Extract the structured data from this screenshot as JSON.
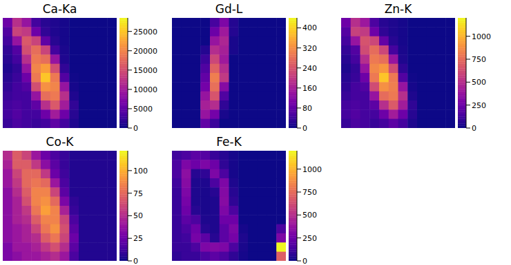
{
  "chart_data": [
    {
      "type": "heatmap",
      "title": "Ca-Ka",
      "tick_labels": false,
      "colorbar_range": [
        0,
        28500
      ],
      "colorbar_ticks": [
        0,
        5000,
        10000,
        15000,
        20000,
        25000
      ],
      "cells": [
        [
          6000,
          12000,
          9000,
          3000,
          1500,
          1000,
          500,
          0,
          0,
          0,
          0,
          0
        ],
        [
          4000,
          14000,
          13000,
          6000,
          2000,
          1000,
          500,
          0,
          0,
          0,
          0,
          0
        ],
        [
          3000,
          9000,
          16000,
          14000,
          5000,
          1500,
          500,
          0,
          0,
          0,
          0,
          0
        ],
        [
          2000,
          4000,
          15000,
          18000,
          14000,
          3000,
          800,
          0,
          0,
          0,
          0,
          0
        ],
        [
          1500,
          3000,
          12000,
          19000,
          18000,
          9000,
          1000,
          0,
          0,
          0,
          0,
          0
        ],
        [
          1000,
          2000,
          9000,
          20000,
          22000,
          15000,
          2000,
          0,
          0,
          0,
          0,
          0
        ],
        [
          1500,
          2500,
          6000,
          19000,
          25000,
          19000,
          4000,
          200,
          0,
          0,
          0,
          0
        ],
        [
          2000,
          3000,
          4000,
          15000,
          21000,
          20000,
          9000,
          500,
          0,
          0,
          0,
          0
        ],
        [
          2500,
          3000,
          3000,
          9000,
          18000,
          19000,
          12000,
          1000,
          0,
          0,
          0,
          0
        ],
        [
          3000,
          3500,
          3000,
          5000,
          12000,
          16000,
          10000,
          2000,
          0,
          0,
          0,
          0
        ],
        [
          3000,
          4000,
          3000,
          3000,
          6000,
          10000,
          6000,
          1500,
          0,
          0,
          0,
          0
        ],
        [
          2500,
          3500,
          3000,
          2500,
          3000,
          5000,
          3000,
          1000,
          0,
          0,
          0,
          0
        ]
      ]
    },
    {
      "type": "heatmap",
      "title": "Gd-L",
      "tick_labels": false,
      "colorbar_range": [
        0,
        440
      ],
      "colorbar_ticks": [
        0,
        80,
        160,
        240,
        320,
        400
      ],
      "cells": [
        [
          0,
          0,
          0,
          0,
          50,
          110,
          20,
          0,
          0,
          0,
          0,
          0
        ],
        [
          0,
          0,
          0,
          0,
          90,
          150,
          20,
          0,
          0,
          0,
          0,
          0
        ],
        [
          0,
          0,
          0,
          0,
          140,
          170,
          10,
          0,
          0,
          0,
          0,
          0
        ],
        [
          0,
          0,
          0,
          20,
          180,
          160,
          10,
          0,
          0,
          0,
          0,
          0
        ],
        [
          0,
          0,
          0,
          40,
          220,
          150,
          0,
          0,
          0,
          0,
          0,
          0
        ],
        [
          0,
          0,
          0,
          60,
          260,
          180,
          0,
          0,
          0,
          0,
          0,
          0
        ],
        [
          0,
          0,
          0,
          80,
          300,
          200,
          0,
          0,
          0,
          0,
          0,
          0
        ],
        [
          0,
          0,
          0,
          100,
          280,
          120,
          0,
          0,
          0,
          0,
          0,
          0
        ],
        [
          0,
          0,
          0,
          140,
          240,
          60,
          0,
          0,
          0,
          0,
          0,
          0
        ],
        [
          0,
          0,
          0,
          160,
          180,
          30,
          0,
          0,
          0,
          0,
          0,
          0
        ],
        [
          0,
          0,
          0,
          140,
          100,
          10,
          0,
          0,
          0,
          0,
          0,
          0
        ],
        [
          0,
          0,
          0,
          80,
          40,
          0,
          0,
          0,
          0,
          0,
          0,
          0
        ]
      ]
    },
    {
      "type": "heatmap",
      "title": "Zn-K",
      "tick_labels": false,
      "colorbar_range": [
        0,
        1200
      ],
      "colorbar_ticks": [
        0,
        250,
        500,
        750,
        1000
      ],
      "cells": [
        [
          250,
          500,
          400,
          150,
          60,
          40,
          20,
          0,
          0,
          0,
          0,
          0
        ],
        [
          180,
          580,
          550,
          250,
          80,
          40,
          20,
          0,
          0,
          0,
          0,
          0
        ],
        [
          130,
          380,
          650,
          600,
          220,
          60,
          20,
          0,
          0,
          0,
          0,
          0
        ],
        [
          90,
          170,
          620,
          750,
          600,
          130,
          30,
          0,
          0,
          0,
          0,
          0
        ],
        [
          60,
          130,
          500,
          800,
          760,
          380,
          40,
          0,
          0,
          0,
          0,
          0
        ],
        [
          40,
          90,
          380,
          850,
          900,
          620,
          80,
          0,
          0,
          0,
          0,
          0
        ],
        [
          60,
          100,
          250,
          800,
          1050,
          800,
          170,
          10,
          0,
          0,
          0,
          0
        ],
        [
          80,
          130,
          170,
          620,
          880,
          820,
          380,
          20,
          0,
          0,
          0,
          0
        ],
        [
          100,
          130,
          130,
          380,
          750,
          800,
          500,
          40,
          0,
          0,
          0,
          0
        ],
        [
          130,
          150,
          130,
          200,
          500,
          680,
          420,
          80,
          0,
          0,
          0,
          0
        ],
        [
          130,
          170,
          130,
          130,
          250,
          420,
          250,
          60,
          0,
          0,
          0,
          0
        ],
        [
          100,
          150,
          130,
          100,
          130,
          200,
          130,
          40,
          0,
          0,
          0,
          0
        ]
      ]
    },
    {
      "type": "heatmap",
      "title": "Co-K",
      "tick_labels": false,
      "colorbar_range": [
        0,
        122
      ],
      "colorbar_ticks": [
        0,
        25,
        50,
        75,
        100
      ],
      "cells": [
        [
          50,
          70,
          60,
          40,
          25,
          15,
          10,
          5,
          5,
          5,
          5,
          5
        ],
        [
          45,
          70,
          70,
          55,
          35,
          20,
          10,
          5,
          5,
          5,
          5,
          5
        ],
        [
          40,
          60,
          75,
          75,
          55,
          25,
          12,
          5,
          5,
          5,
          5,
          5
        ],
        [
          40,
          55,
          75,
          80,
          75,
          40,
          15,
          5,
          5,
          5,
          5,
          5
        ],
        [
          35,
          50,
          70,
          85,
          85,
          60,
          20,
          5,
          5,
          5,
          5,
          5
        ],
        [
          35,
          45,
          65,
          85,
          90,
          75,
          30,
          8,
          5,
          5,
          5,
          5
        ],
        [
          35,
          45,
          55,
          80,
          95,
          85,
          45,
          10,
          5,
          5,
          5,
          5
        ],
        [
          35,
          45,
          50,
          70,
          85,
          85,
          60,
          15,
          5,
          5,
          5,
          5
        ],
        [
          35,
          40,
          45,
          60,
          80,
          90,
          65,
          20,
          5,
          5,
          5,
          5
        ],
        [
          35,
          40,
          45,
          50,
          70,
          80,
          60,
          25,
          5,
          5,
          5,
          5
        ],
        [
          30,
          40,
          40,
          45,
          55,
          65,
          50,
          20,
          5,
          5,
          5,
          5
        ],
        [
          30,
          35,
          40,
          40,
          45,
          50,
          40,
          15,
          5,
          5,
          5,
          5
        ]
      ]
    },
    {
      "type": "heatmap",
      "title": "Fe-K",
      "tick_labels": false,
      "colorbar_range": [
        0,
        1200
      ],
      "colorbar_ticks": [
        0,
        250,
        500,
        750,
        1000
      ],
      "cells": [
        [
          120,
          150,
          200,
          180,
          100,
          60,
          20,
          0,
          0,
          0,
          0,
          0
        ],
        [
          150,
          300,
          250,
          300,
          250,
          80,
          20,
          0,
          0,
          0,
          0,
          0
        ],
        [
          150,
          350,
          60,
          80,
          300,
          150,
          20,
          0,
          0,
          0,
          0,
          0
        ],
        [
          120,
          330,
          40,
          40,
          150,
          300,
          40,
          0,
          0,
          0,
          0,
          0
        ],
        [
          100,
          300,
          40,
          30,
          60,
          320,
          60,
          0,
          0,
          0,
          0,
          0
        ],
        [
          100,
          280,
          40,
          30,
          40,
          330,
          80,
          0,
          0,
          0,
          0,
          0
        ],
        [
          100,
          250,
          60,
          30,
          40,
          300,
          150,
          0,
          0,
          0,
          0,
          0
        ],
        [
          100,
          200,
          150,
          40,
          40,
          250,
          250,
          0,
          0,
          0,
          0,
          0
        ],
        [
          100,
          150,
          250,
          60,
          40,
          200,
          300,
          20,
          0,
          0,
          0,
          150
        ],
        [
          100,
          120,
          280,
          200,
          60,
          200,
          280,
          40,
          0,
          0,
          0,
          300
        ],
        [
          100,
          100,
          150,
          300,
          320,
          300,
          150,
          30,
          0,
          0,
          0,
          1200
        ],
        [
          80,
          100,
          100,
          150,
          200,
          150,
          80,
          20,
          0,
          0,
          0,
          700
        ]
      ]
    }
  ]
}
